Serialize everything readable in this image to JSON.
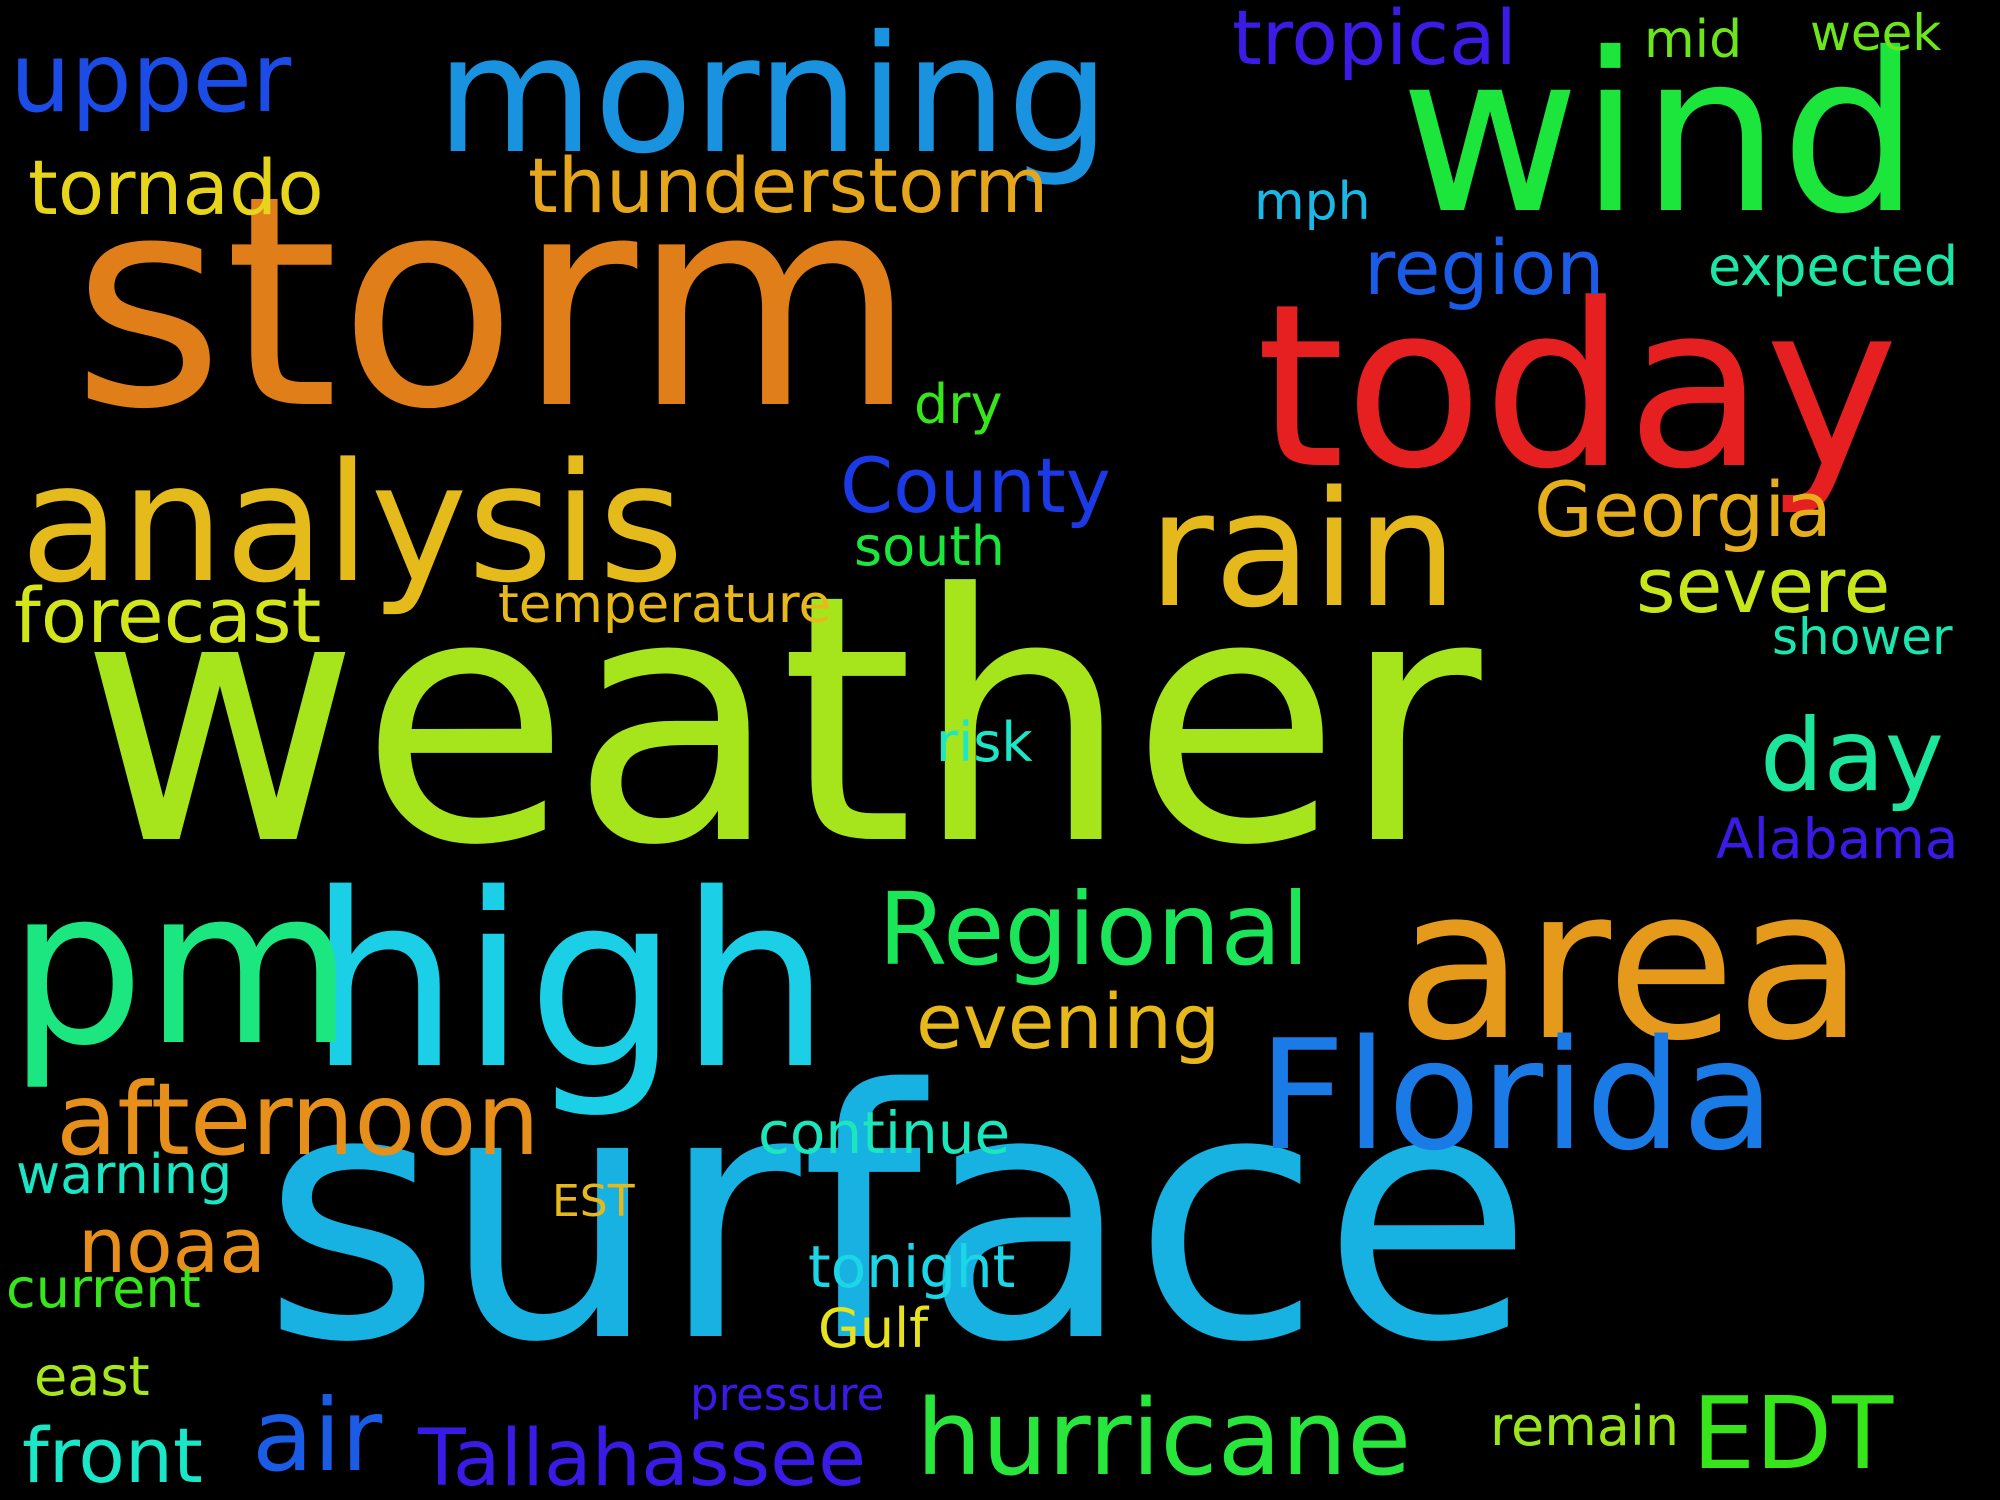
{
  "words": [
    {
      "text": "storm",
      "color": "#E07E1A"
    },
    {
      "text": "weather",
      "color": "#A6E51B"
    },
    {
      "text": "surface",
      "color": "#17B1E2"
    },
    {
      "text": "today",
      "color": "#E62020"
    },
    {
      "text": "wind",
      "color": "#1CE63C"
    },
    {
      "text": "morning",
      "color": "#1992E0"
    },
    {
      "text": "high",
      "color": "#1BD0E6"
    },
    {
      "text": "pm",
      "color": "#1BE680"
    },
    {
      "text": "area",
      "color": "#E69A1B"
    },
    {
      "text": "analysis",
      "color": "#E5BB1B"
    },
    {
      "text": "Florida",
      "color": "#1B7BE6"
    },
    {
      "text": "rain",
      "color": "#E5B81B"
    },
    {
      "text": "hurricane",
      "color": "#29E63C"
    },
    {
      "text": "Regional",
      "color": "#1BE65A"
    },
    {
      "text": "afternoon",
      "color": "#E6901B"
    },
    {
      "text": "air",
      "color": "#1B5CE6"
    },
    {
      "text": "EDT",
      "color": "#36E61B"
    },
    {
      "text": "day",
      "color": "#1BE69B"
    },
    {
      "text": "Tallahassee",
      "color": "#3A1BE6"
    },
    {
      "text": "upper",
      "color": "#1B4CE6"
    },
    {
      "text": "thunderstorm",
      "color": "#E6A61B"
    },
    {
      "text": "tornado",
      "color": "#E6D51B"
    },
    {
      "text": "front",
      "color": "#1BE6C8"
    },
    {
      "text": "County",
      "color": "#1B3AE6"
    },
    {
      "text": "Georgia",
      "color": "#E6AE1B"
    },
    {
      "text": "forecast",
      "color": "#D2E61B"
    },
    {
      "text": "severe",
      "color": "#C9E61B"
    },
    {
      "text": "region",
      "color": "#1B5CE6"
    },
    {
      "text": "noaa",
      "color": "#E6901B"
    },
    {
      "text": "evening",
      "color": "#E6B81B"
    },
    {
      "text": "tropical",
      "color": "#3C1BE6"
    },
    {
      "text": "continue",
      "color": "#1BE6BC"
    },
    {
      "text": "tonight",
      "color": "#1BD6E6"
    },
    {
      "text": "warning",
      "color": "#1BE6C4"
    },
    {
      "text": "temperature",
      "color": "#E6B81B"
    },
    {
      "text": "Alabama",
      "color": "#3A1BE6"
    },
    {
      "text": "expected",
      "color": "#1BE6A6"
    },
    {
      "text": "current",
      "color": "#36E61B"
    },
    {
      "text": "remain",
      "color": "#9BE61B"
    },
    {
      "text": "Gulf",
      "color": "#E6E21B"
    },
    {
      "text": "south",
      "color": "#1BE63C"
    },
    {
      "text": "dry",
      "color": "#36E61B"
    },
    {
      "text": "risk",
      "color": "#1BE6C8"
    },
    {
      "text": "east",
      "color": "#A6E61B"
    },
    {
      "text": "mph",
      "color": "#1BB8E6"
    },
    {
      "text": "week",
      "color": "#6CE61B"
    },
    {
      "text": "mid",
      "color": "#6CE61B"
    },
    {
      "text": "shower",
      "color": "#1BE6B0"
    },
    {
      "text": "EST",
      "color": "#E6B81B"
    },
    {
      "text": "pressure",
      "color": "#3A1BE6"
    }
  ]
}
